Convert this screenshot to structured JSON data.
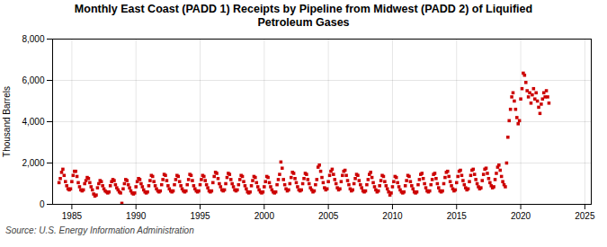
{
  "chart_data": {
    "type": "scatter",
    "title": "Monthly East Coast (PADD 1) Receipts by Pipeline from Midwest (PADD 2) of Liquified\nPetroleum Gases",
    "ylabel": "Thousand Barrels",
    "annotations": [
      "Source: U.S. Energy Information Administration"
    ],
    "color": "#CC0000",
    "marker": "square",
    "grid": true,
    "xlim": [
      1983.5,
      2025.5
    ],
    "ylim": [
      0,
      8000
    ],
    "xticks": [
      1985,
      1990,
      1995,
      2000,
      2005,
      2010,
      2015,
      2020,
      2025
    ],
    "yticks": [
      0,
      {
        "value": 2000,
        "label": "2,000"
      },
      {
        "value": 4000,
        "label": "4,000"
      },
      {
        "value": 6000,
        "label": "6,000"
      },
      {
        "value": 8000,
        "label": "8,000"
      }
    ],
    "x": [
      1984.0,
      1984.1,
      1984.2,
      1984.3,
      1984.4,
      1984.5,
      1984.6,
      1984.7,
      1984.8,
      1984.9,
      1985.0,
      1985.1,
      1985.2,
      1985.3,
      1985.4,
      1985.5,
      1985.6,
      1985.7,
      1985.8,
      1985.9,
      1986.0,
      1986.1,
      1986.2,
      1986.3,
      1986.4,
      1986.5,
      1986.6,
      1986.7,
      1986.8,
      1986.9,
      1987.0,
      1987.1,
      1987.2,
      1987.3,
      1987.4,
      1987.5,
      1987.6,
      1987.7,
      1987.8,
      1987.9,
      1988.0,
      1988.1,
      1988.2,
      1988.3,
      1988.4,
      1988.5,
      1988.6,
      1988.7,
      1988.8,
      1988.9,
      1989.0,
      1989.1,
      1989.2,
      1989.3,
      1989.4,
      1989.5,
      1989.6,
      1989.7,
      1989.8,
      1989.9,
      1990.0,
      1990.1,
      1990.2,
      1990.3,
      1990.4,
      1990.5,
      1990.6,
      1990.7,
      1990.8,
      1990.9,
      1991.0,
      1991.1,
      1991.2,
      1991.3,
      1991.4,
      1991.5,
      1991.6,
      1991.7,
      1991.8,
      1991.9,
      1992.0,
      1992.1,
      1992.2,
      1992.3,
      1992.4,
      1992.5,
      1992.6,
      1992.7,
      1992.8,
      1992.9,
      1993.0,
      1993.1,
      1993.2,
      1993.3,
      1993.4,
      1993.5,
      1993.6,
      1993.7,
      1993.8,
      1993.9,
      1994.0,
      1994.1,
      1994.2,
      1994.3,
      1994.4,
      1994.5,
      1994.6,
      1994.7,
      1994.8,
      1994.9,
      1995.0,
      1995.1,
      1995.2,
      1995.3,
      1995.4,
      1995.5,
      1995.6,
      1995.7,
      1995.8,
      1995.9,
      1996.0,
      1996.1,
      1996.2,
      1996.3,
      1996.4,
      1996.5,
      1996.6,
      1996.7,
      1996.8,
      1996.9,
      1997.0,
      1997.1,
      1997.2,
      1997.3,
      1997.4,
      1997.5,
      1997.6,
      1997.7,
      1997.8,
      1997.9,
      1998.0,
      1998.1,
      1998.2,
      1998.3,
      1998.4,
      1998.5,
      1998.6,
      1998.7,
      1998.8,
      1998.9,
      1999.0,
      1999.1,
      1999.2,
      1999.3,
      1999.4,
      1999.5,
      1999.6,
      1999.7,
      1999.8,
      1999.9,
      2000.0,
      2000.1,
      2000.2,
      2000.3,
      2000.4,
      2000.5,
      2000.6,
      2000.7,
      2000.8,
      2000.9,
      2001.0,
      2001.1,
      2001.2,
      2001.3,
      2001.4,
      2001.5,
      2001.6,
      2001.7,
      2001.8,
      2001.9,
      2002.0,
      2002.1,
      2002.2,
      2002.3,
      2002.4,
      2002.5,
      2002.6,
      2002.7,
      2002.8,
      2002.9,
      2003.0,
      2003.1,
      2003.2,
      2003.3,
      2003.4,
      2003.5,
      2003.6,
      2003.7,
      2003.8,
      2003.9,
      2004.0,
      2004.1,
      2004.2,
      2004.3,
      2004.4,
      2004.5,
      2004.6,
      2004.7,
      2004.8,
      2004.9,
      2005.0,
      2005.1,
      2005.2,
      2005.3,
      2005.4,
      2005.5,
      2005.6,
      2005.7,
      2005.8,
      2005.9,
      2006.0,
      2006.1,
      2006.2,
      2006.3,
      2006.4,
      2006.5,
      2006.6,
      2006.7,
      2006.8,
      2006.9,
      2007.0,
      2007.1,
      2007.2,
      2007.3,
      2007.4,
      2007.5,
      2007.6,
      2007.7,
      2007.8,
      2007.9,
      2008.0,
      2008.1,
      2008.2,
      2008.3,
      2008.4,
      2008.5,
      2008.6,
      2008.7,
      2008.8,
      2008.9,
      2009.0,
      2009.1,
      2009.2,
      2009.3,
      2009.4,
      2009.5,
      2009.6,
      2009.7,
      2009.8,
      2009.9,
      2010.0,
      2010.1,
      2010.2,
      2010.3,
      2010.4,
      2010.5,
      2010.6,
      2010.7,
      2010.8,
      2010.9,
      2011.0,
      2011.1,
      2011.2,
      2011.3,
      2011.4,
      2011.5,
      2011.6,
      2011.7,
      2011.8,
      2011.9,
      2012.0,
      2012.1,
      2012.2,
      2012.3,
      2012.4,
      2012.5,
      2012.6,
      2012.7,
      2012.8,
      2012.9,
      2013.0,
      2013.1,
      2013.2,
      2013.3,
      2013.4,
      2013.5,
      2013.6,
      2013.7,
      2013.8,
      2013.9,
      2014.0,
      2014.1,
      2014.2,
      2014.3,
      2014.4,
      2014.5,
      2014.6,
      2014.7,
      2014.8,
      2014.9,
      2015.0,
      2015.1,
      2015.2,
      2015.3,
      2015.4,
      2015.5,
      2015.6,
      2015.7,
      2015.8,
      2015.9,
      2016.0,
      2016.1,
      2016.2,
      2016.3,
      2016.4,
      2016.5,
      2016.6,
      2016.7,
      2016.8,
      2016.9,
      2017.0,
      2017.1,
      2017.2,
      2017.3,
      2017.4,
      2017.5,
      2017.6,
      2017.7,
      2017.8,
      2017.9,
      2018.0,
      2018.1,
      2018.2,
      2018.3,
      2018.4,
      2018.5,
      2018.6,
      2018.7,
      2018.8,
      2018.9,
      2019.0,
      2019.1,
      2019.2,
      2019.3,
      2019.4,
      2019.5,
      2019.6,
      2019.7,
      2019.8,
      2019.9,
      2020.0,
      2020.1,
      2020.2,
      2020.3,
      2020.4,
      2020.5,
      2020.6,
      2020.7,
      2020.8,
      2020.9,
      2021.0,
      2021.1,
      2021.2,
      2021.3,
      2021.4,
      2021.5,
      2021.6,
      2021.7,
      2021.8,
      2021.9,
      2022.0,
      2022.1,
      2022.2
    ],
    "values": [
      1050,
      1250,
      1550,
      1700,
      1400,
      1100,
      900,
      750,
      700,
      750,
      1100,
      1400,
      1600,
      1600,
      1350,
      1050,
      850,
      700,
      650,
      700,
      1000,
      1150,
      1300,
      1250,
      1050,
      850,
      700,
      500,
      400,
      450,
      800,
      1000,
      1150,
      1100,
      900,
      750,
      650,
      600,
      550,
      600,
      900,
      1100,
      1200,
      1150,
      950,
      800,
      700,
      600,
      550,
      50,
      750,
      1000,
      1200,
      1150,
      950,
      800,
      650,
      550,
      500,
      550,
      850,
      1100,
      1250,
      1200,
      1000,
      850,
      700,
      600,
      550,
      600,
      900,
      1150,
      1400,
      1350,
      1100,
      900,
      750,
      650,
      600,
      650,
      950,
      1200,
      1450,
      1400,
      1150,
      900,
      750,
      650,
      600,
      650,
      950,
      1200,
      1400,
      1350,
      1100,
      900,
      750,
      650,
      600,
      650,
      950,
      1200,
      1450,
      1400,
      1150,
      900,
      750,
      650,
      600,
      650,
      950,
      1200,
      1400,
      1350,
      1150,
      950,
      800,
      650,
      600,
      650,
      1050,
      1350,
      1550,
      1500,
      1250,
      1000,
      850,
      700,
      650,
      700,
      1000,
      1300,
      1500,
      1450,
      1200,
      1000,
      850,
      700,
      650,
      700,
      950,
      1200,
      1400,
      1350,
      1100,
      900,
      750,
      600,
      550,
      600,
      900,
      1150,
      1350,
      1300,
      1050,
      850,
      700,
      600,
      550,
      600,
      850,
      1100,
      1350,
      1300,
      1050,
      850,
      700,
      600,
      550,
      600,
      950,
      1200,
      1450,
      2050,
      1750,
      1200,
      950,
      750,
      650,
      700,
      1000,
      1300,
      1550,
      1500,
      1250,
      1050,
      850,
      700,
      650,
      700,
      1000,
      1250,
      1500,
      1450,
      1200,
      1000,
      800,
      700,
      600,
      650,
      950,
      1200,
      1800,
      1900,
      1600,
      1300,
      1050,
      800,
      700,
      750,
      1100,
      1400,
      1600,
      1700,
      1450,
      1200,
      1000,
      800,
      700,
      750,
      1100,
      1400,
      1600,
      1650,
      1400,
      1150,
      950,
      750,
      650,
      700,
      1000,
      1250,
      1450,
      1400,
      1150,
      950,
      800,
      650,
      600,
      650,
      950,
      1200,
      1450,
      1550,
      1300,
      1050,
      850,
      700,
      600,
      650,
      900,
      1150,
      1400,
      1350,
      1100,
      900,
      750,
      600,
      450,
      550,
      850,
      1100,
      1350,
      1300,
      1050,
      850,
      700,
      600,
      550,
      600,
      900,
      1150,
      1400,
      1350,
      1100,
      900,
      750,
      600,
      550,
      600,
      950,
      1200,
      1450,
      1500,
      1250,
      1000,
      800,
      650,
      600,
      650,
      950,
      1200,
      1450,
      1500,
      1250,
      1000,
      800,
      650,
      600,
      650,
      1000,
      1300,
      1550,
      1600,
      1350,
      1100,
      900,
      750,
      650,
      700,
      1050,
      1350,
      1600,
      1650,
      1400,
      1150,
      950,
      800,
      700,
      750,
      1100,
      1400,
      1650,
      1700,
      1450,
      1200,
      1000,
      850,
      750,
      800,
      1150,
      1450,
      1700,
      1750,
      1500,
      1250,
      1050,
      900,
      800,
      850,
      1200,
      1500,
      1800,
      1900,
      1650,
      1350,
      1100,
      950,
      850,
      2000,
      3250,
      4050,
      4600,
      5200,
      5400,
      5000,
      4600,
      4200,
      3900,
      4050,
      5100,
      5600,
      6350,
      6250,
      5900,
      5500,
      5200,
      5400,
      4900,
      5300,
      5600,
      5100,
      5400,
      5000,
      4700,
      4400,
      4850,
      5100,
      5400,
      5200,
      5500,
      5200,
      4900
    ]
  }
}
